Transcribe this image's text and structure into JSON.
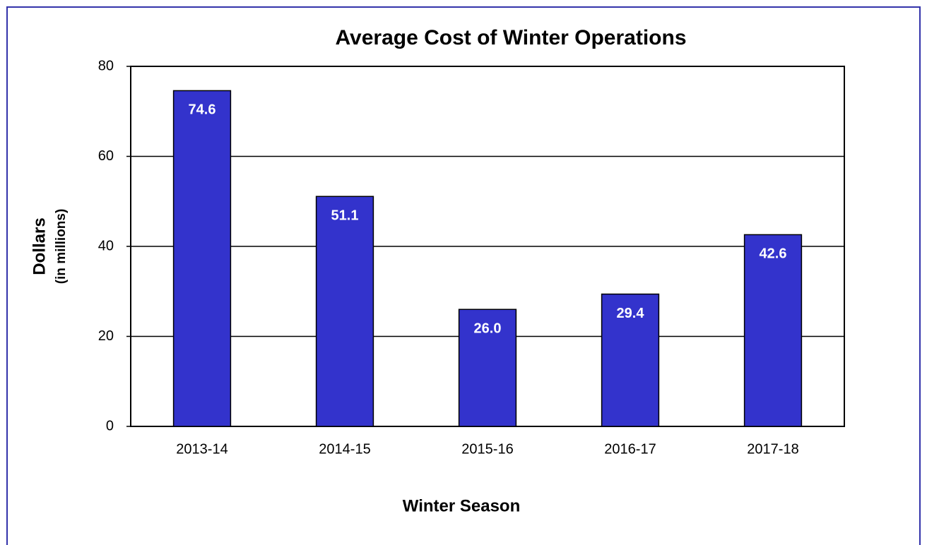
{
  "chart_data": {
    "type": "bar",
    "title": "Average Cost of Winter Operations",
    "x_label": "Winter Season",
    "y_label": "Dollars",
    "y_sublabel": "(in millions)",
    "categories": [
      "2013-14",
      "2014-15",
      "2015-16",
      "2016-17",
      "2017-18"
    ],
    "values": [
      74.6,
      51.1,
      26,
      29.4,
      42.6
    ],
    "value_labels": [
      "74.6",
      "51.1",
      "26.0",
      "29.4",
      "42.6"
    ],
    "color": "#3333cc",
    "ylim": [
      0,
      80
    ],
    "yticks": [
      0,
      20,
      40,
      60,
      80
    ],
    "grid": true
  }
}
